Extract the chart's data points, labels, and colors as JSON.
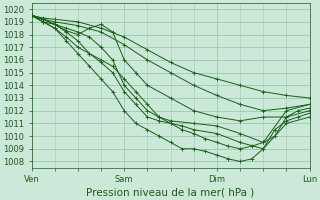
{
  "title": "",
  "xlabel": "Pression niveau de la mer( hPa )",
  "ylabel": "",
  "xlim": [
    0,
    72
  ],
  "ylim": [
    1007.5,
    1020.5
  ],
  "yticks": [
    1008,
    1009,
    1010,
    1011,
    1012,
    1013,
    1014,
    1015,
    1016,
    1017,
    1018,
    1019,
    1020
  ],
  "xtick_positions": [
    0,
    24,
    48,
    72
  ],
  "xtick_labels": [
    "Ven",
    "Sam",
    "Dim",
    "Lun"
  ],
  "bg_color": "#cce8d8",
  "grid_color": "#99ccaa",
  "line_color": "#1a5c1a",
  "lines": [
    {
      "x": [
        0,
        3,
        6,
        12,
        18,
        24,
        30,
        36,
        42,
        48,
        54,
        60,
        66,
        72
      ],
      "y": [
        1019.5,
        1019.3,
        1019.2,
        1019.0,
        1018.5,
        1017.8,
        1016.8,
        1015.8,
        1015.0,
        1014.5,
        1014.0,
        1013.5,
        1013.2,
        1013.0
      ]
    },
    {
      "x": [
        0,
        3,
        6,
        12,
        18,
        24,
        30,
        36,
        42,
        48,
        54,
        60,
        66,
        72
      ],
      "y": [
        1019.5,
        1019.2,
        1019.0,
        1018.7,
        1018.2,
        1017.2,
        1016.0,
        1015.0,
        1014.0,
        1013.2,
        1012.5,
        1012.0,
        1012.2,
        1012.5
      ]
    },
    {
      "x": [
        0,
        3,
        6,
        9,
        12,
        15,
        18,
        21,
        24,
        27,
        30,
        36,
        42,
        48,
        54,
        60,
        66,
        72
      ],
      "y": [
        1019.5,
        1019.2,
        1018.8,
        1018.3,
        1018.0,
        1018.5,
        1018.8,
        1018.2,
        1016.0,
        1015.0,
        1014.0,
        1013.0,
        1012.0,
        1011.5,
        1011.2,
        1011.5,
        1011.5,
        1012.0
      ]
    },
    {
      "x": [
        0,
        3,
        6,
        9,
        12,
        15,
        18,
        21,
        24,
        27,
        30,
        33,
        36,
        39,
        42,
        48,
        54,
        60,
        66,
        72
      ],
      "y": [
        1019.5,
        1019.0,
        1018.5,
        1017.8,
        1017.0,
        1016.5,
        1016.0,
        1015.5,
        1014.5,
        1013.5,
        1012.5,
        1011.5,
        1011.0,
        1010.8,
        1010.5,
        1010.2,
        1009.5,
        1009.0,
        1011.0,
        1011.5
      ]
    },
    {
      "x": [
        0,
        3,
        6,
        9,
        12,
        15,
        18,
        21,
        24,
        27,
        30,
        33,
        36,
        42,
        48,
        54,
        60,
        66,
        72
      ],
      "y": [
        1019.5,
        1019.0,
        1018.8,
        1018.5,
        1018.2,
        1017.8,
        1017.0,
        1016.0,
        1014.0,
        1013.0,
        1012.0,
        1011.5,
        1011.2,
        1011.0,
        1010.8,
        1010.2,
        1009.5,
        1012.0,
        1012.5
      ]
    },
    {
      "x": [
        0,
        3,
        6,
        9,
        12,
        15,
        18,
        21,
        24,
        27,
        30,
        33,
        36,
        39,
        42,
        45,
        48,
        51,
        54,
        57,
        60,
        63,
        66,
        69,
        72
      ],
      "y": [
        1019.5,
        1019.2,
        1018.8,
        1018.2,
        1017.5,
        1016.5,
        1015.8,
        1015.0,
        1013.5,
        1012.5,
        1011.5,
        1011.2,
        1011.0,
        1010.5,
        1010.2,
        1009.8,
        1009.5,
        1009.2,
        1009.0,
        1009.2,
        1009.5,
        1010.0,
        1011.5,
        1012.0,
        1012.2
      ]
    },
    {
      "x": [
        0,
        3,
        6,
        9,
        12,
        15,
        18,
        21,
        24,
        27,
        30,
        33,
        36,
        39,
        42,
        45,
        48,
        51,
        54,
        57,
        60,
        63,
        66,
        69,
        72
      ],
      "y": [
        1019.5,
        1019.0,
        1018.5,
        1017.5,
        1016.5,
        1015.5,
        1014.5,
        1013.5,
        1012.0,
        1011.0,
        1010.5,
        1010.0,
        1009.5,
        1009.0,
        1009.0,
        1008.8,
        1008.5,
        1008.2,
        1008.0,
        1008.2,
        1009.0,
        1010.5,
        1011.2,
        1011.5,
        1011.8
      ]
    }
  ],
  "marker": "+",
  "markersize": 2.5,
  "linewidth": 0.7,
  "xlabel_fontsize": 7.5,
  "tick_fontsize": 6.0
}
